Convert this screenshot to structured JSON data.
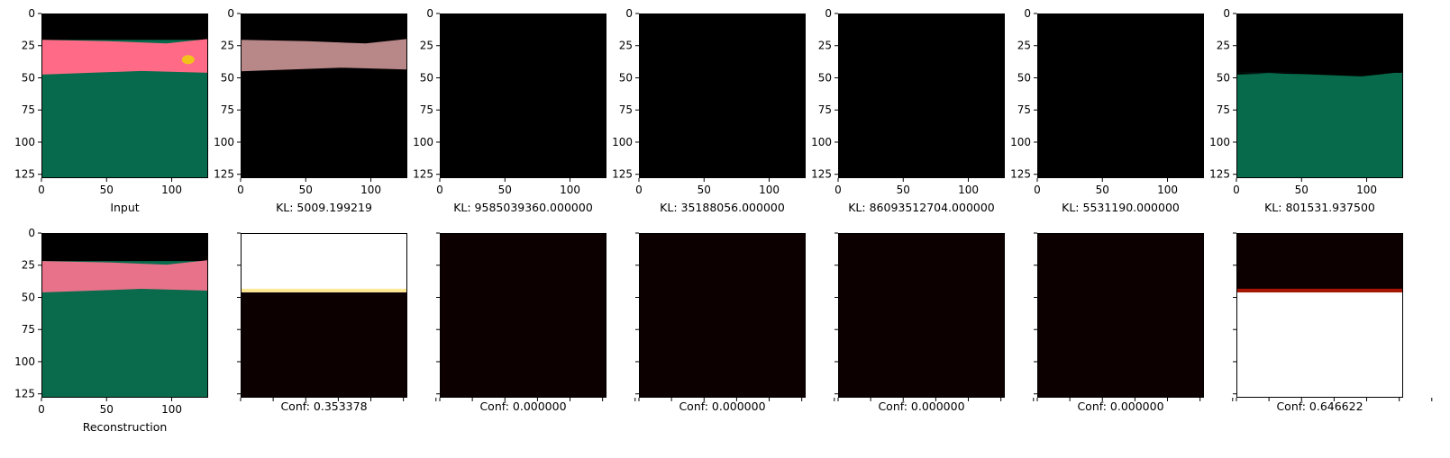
{
  "chart_data": [
    {
      "type": "image",
      "title": "",
      "xlabel": "Input",
      "xticks": [
        0,
        50,
        100
      ],
      "yticks": [
        0,
        25,
        50,
        75,
        100,
        125
      ],
      "show_tick_labels": true,
      "content": {
        "kind": "scene",
        "sky_end": 0.16,
        "pink_end": 0.36,
        "pink": "#ff6b86",
        "ground": "#076a4c",
        "sky": "#000000",
        "blob": true,
        "blob_color": "#f2c21b"
      }
    },
    {
      "type": "image",
      "title": "",
      "xlabel": "KL: 5009.199219",
      "xticks": [
        0,
        50,
        100
      ],
      "yticks": [
        0,
        25,
        50,
        75,
        100,
        125
      ],
      "show_tick_labels": true,
      "content": {
        "kind": "scene",
        "sky_end": 0.16,
        "pink_end": 0.34,
        "pink": "#b88788",
        "ground": "#000000",
        "sky": "#000000",
        "blob": false
      }
    },
    {
      "type": "image",
      "title": "",
      "xlabel": "KL: 9585039360.000000",
      "xticks": [
        0,
        50,
        100
      ],
      "yticks": [
        0,
        25,
        50,
        75,
        100,
        125
      ],
      "show_tick_labels": true,
      "content": {
        "kind": "solid",
        "color": "#000000"
      }
    },
    {
      "type": "image",
      "title": "",
      "xlabel": "KL: 35188056.000000",
      "xticks": [
        0,
        50,
        100
      ],
      "yticks": [
        0,
        25,
        50,
        75,
        100,
        125
      ],
      "show_tick_labels": true,
      "content": {
        "kind": "solid",
        "color": "#000000"
      }
    },
    {
      "type": "image",
      "title": "",
      "xlabel": "KL: 86093512704.000000",
      "xticks": [
        0,
        50,
        100
      ],
      "yticks": [
        0,
        25,
        50,
        75,
        100,
        125
      ],
      "show_tick_labels": true,
      "content": {
        "kind": "solid",
        "color": "#000000"
      }
    },
    {
      "type": "image",
      "title": "",
      "xlabel": "KL: 5531190.000000",
      "xticks": [
        0,
        50,
        100
      ],
      "yticks": [
        0,
        25,
        50,
        75,
        100,
        125
      ],
      "show_tick_labels": true,
      "content": {
        "kind": "solid",
        "color": "#000000"
      }
    },
    {
      "type": "image",
      "title": "",
      "xlabel": "KL: 801531.937500",
      "xticks": [
        0,
        50,
        100
      ],
      "yticks": [
        0,
        25,
        50,
        75,
        100,
        125
      ],
      "show_tick_labels": true,
      "content": {
        "kind": "scene",
        "sky_end": 0.36,
        "pink_end": 0.36,
        "pink": "#000000",
        "ground": "#066a4b",
        "sky": "#000000",
        "blob": false
      }
    },
    {
      "type": "image",
      "title": "",
      "xlabel": "Reconstruction",
      "xticks": [
        0,
        50,
        100
      ],
      "yticks": [
        0,
        25,
        50,
        75,
        100,
        125
      ],
      "show_tick_labels": true,
      "content": {
        "kind": "scene",
        "sky_end": 0.17,
        "pink_end": 0.35,
        "pink": "#e77289",
        "ground": "#0a6a4c",
        "sky": "#000000",
        "blob": false
      }
    },
    {
      "type": "heatmap",
      "title": "",
      "xlabel": "Conf: 0.353378",
      "show_tick_labels": false,
      "content": {
        "kind": "conf",
        "top": "#ffffff",
        "bottom": "#0d0000",
        "boundary": 0.36,
        "band": "#ffe27a"
      }
    },
    {
      "type": "heatmap",
      "title": "",
      "xlabel": "Conf: 0.000000",
      "show_tick_labels": false,
      "content": {
        "kind": "solid",
        "color": "#0d0000"
      }
    },
    {
      "type": "heatmap",
      "title": "",
      "xlabel": "Conf: 0.000000",
      "show_tick_labels": false,
      "content": {
        "kind": "solid",
        "color": "#0d0000"
      }
    },
    {
      "type": "heatmap",
      "title": "",
      "xlabel": "Conf: 0.000000",
      "show_tick_labels": false,
      "content": {
        "kind": "solid",
        "color": "#0d0000"
      }
    },
    {
      "type": "heatmap",
      "title": "",
      "xlabel": "Conf: 0.000000",
      "show_tick_labels": false,
      "content": {
        "kind": "solid",
        "color": "#0d0000"
      }
    },
    {
      "type": "heatmap",
      "title": "",
      "xlabel": "Conf: 0.646622",
      "show_tick_labels": false,
      "content": {
        "kind": "conf",
        "top": "#0d0000",
        "bottom": "#ffffff",
        "boundary": 0.36,
        "band": "#d01a00"
      }
    }
  ]
}
